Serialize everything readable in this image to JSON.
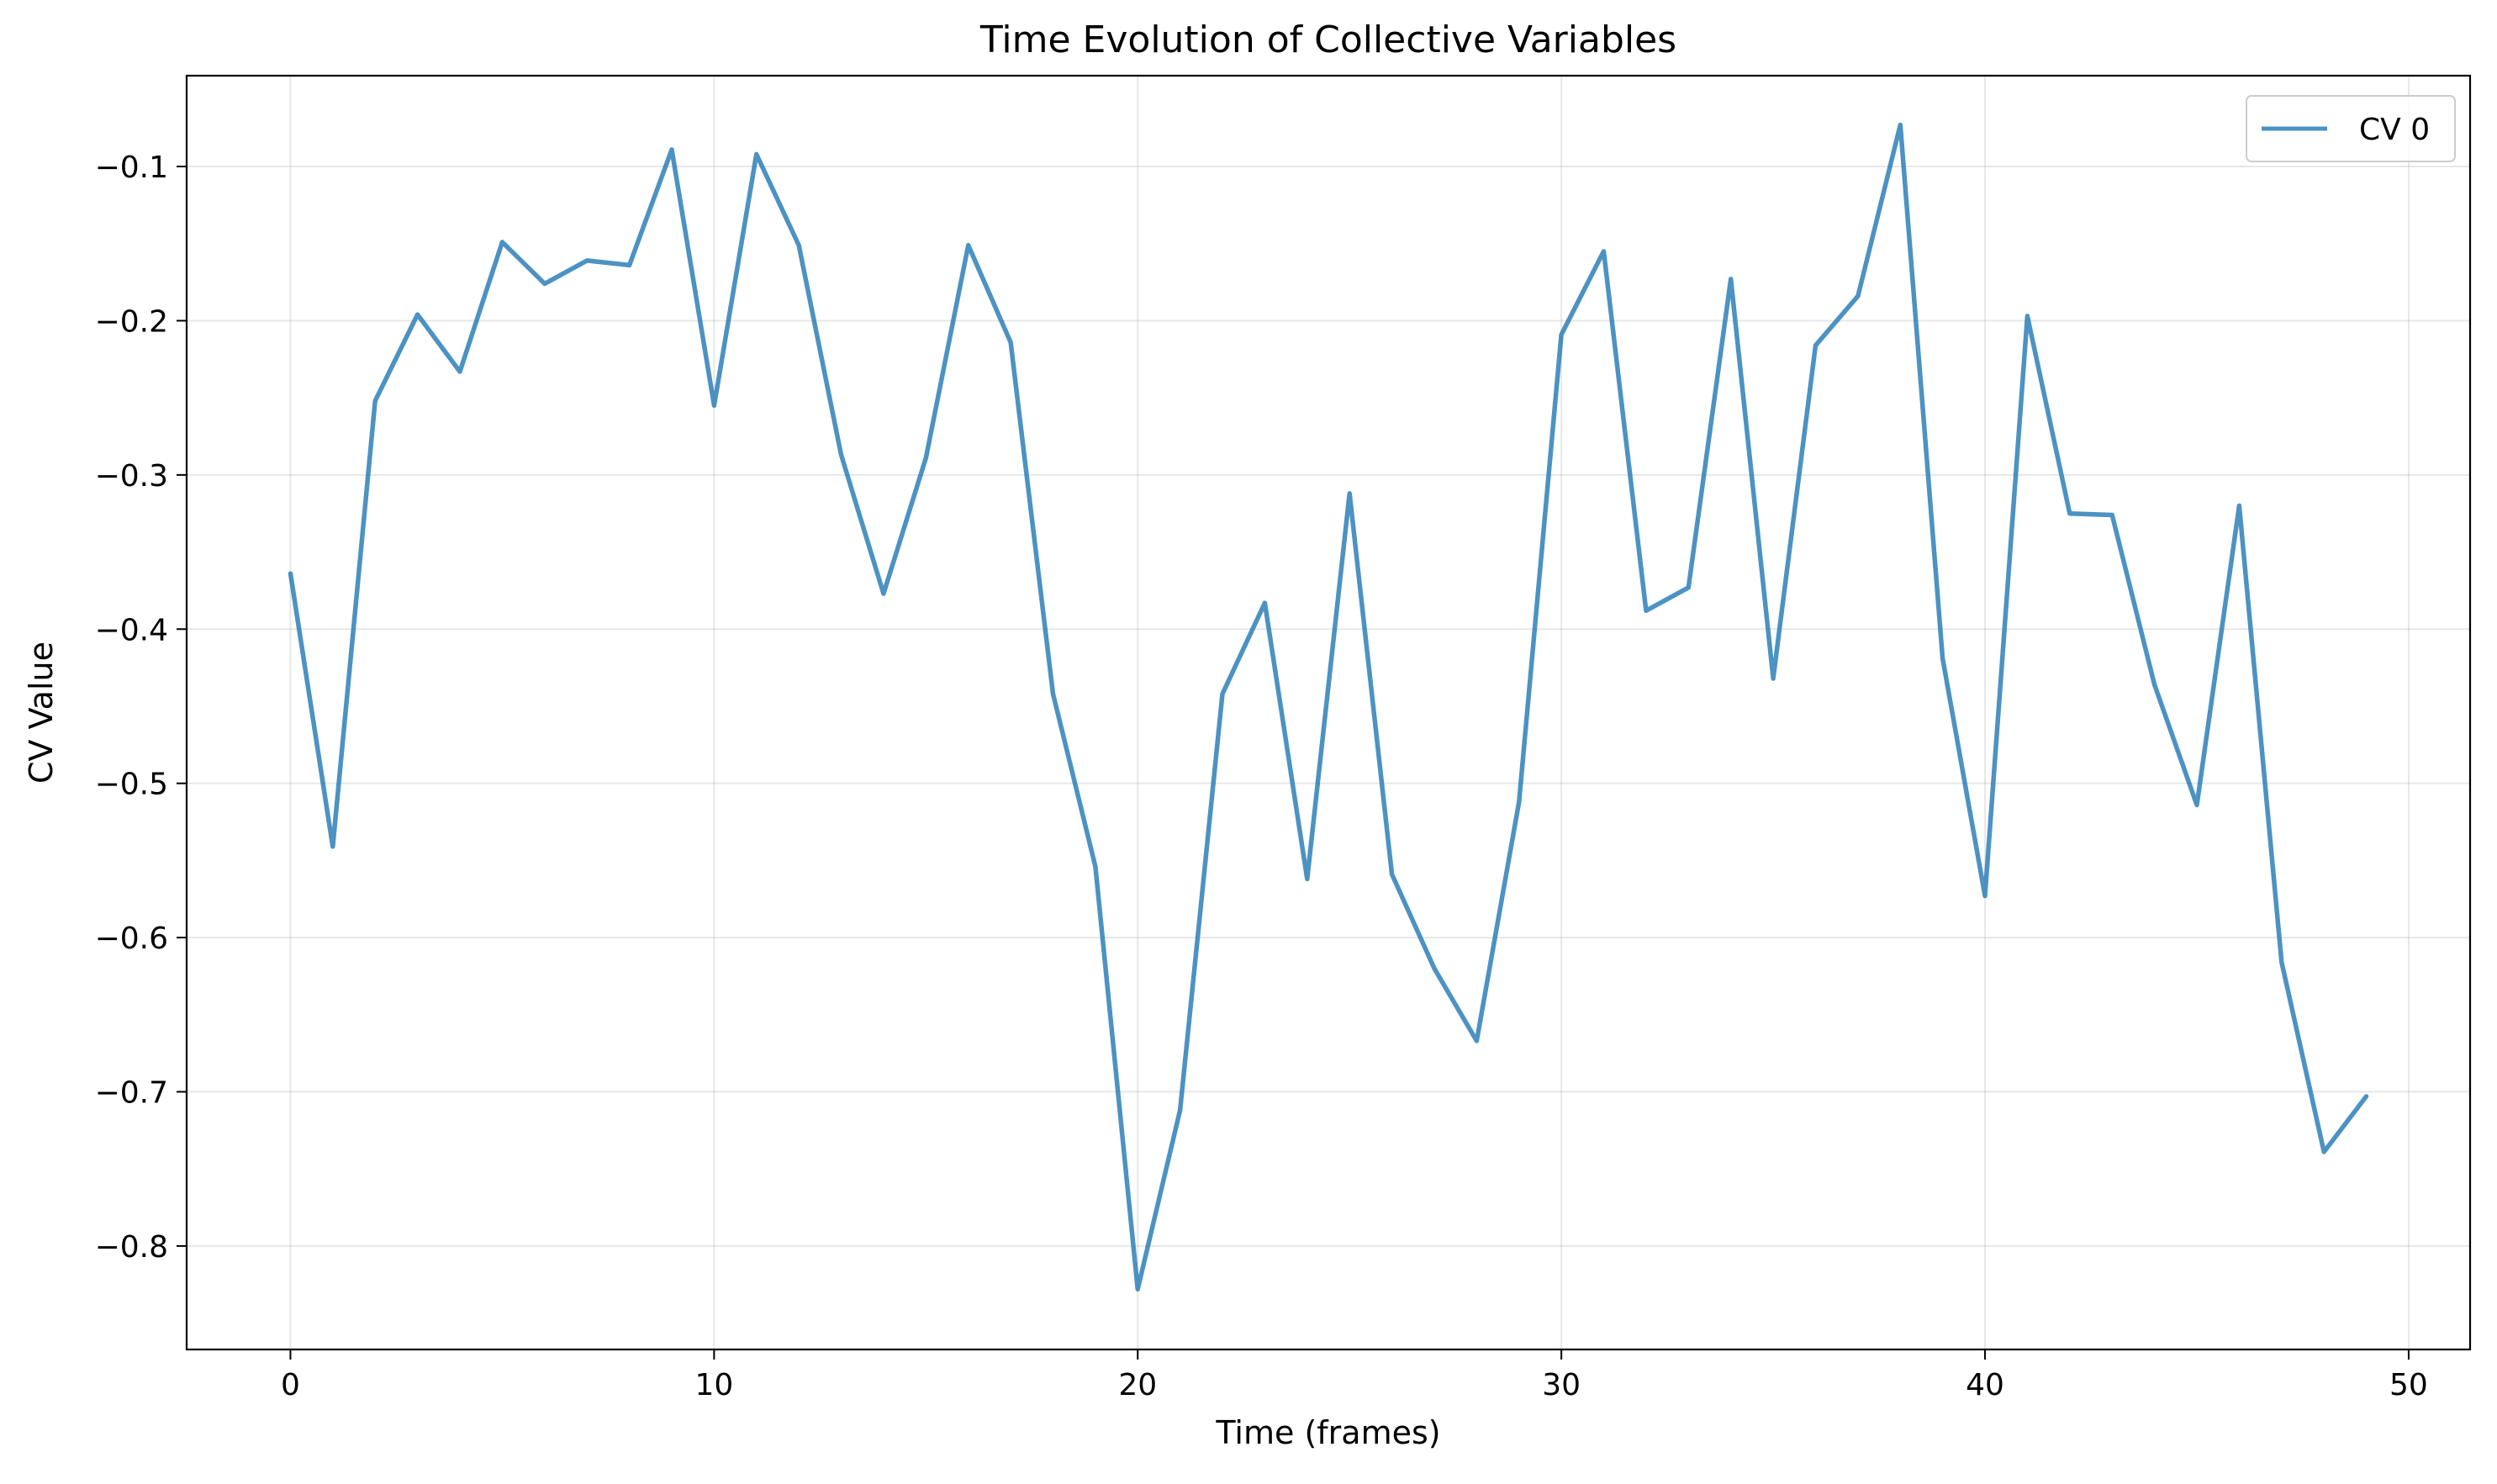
{
  "chart_data": {
    "type": "line",
    "title": "Time Evolution of Collective Variables",
    "xlabel": "Time (frames)",
    "ylabel": "CV Value",
    "xlim": [
      -2.45,
      51.45
    ],
    "ylim": [
      -0.8671,
      -0.0411
    ],
    "xticks": [
      0,
      10,
      20,
      30,
      40,
      50
    ],
    "yticks": [
      -0.8,
      -0.7,
      -0.6,
      -0.5,
      -0.4,
      -0.3,
      -0.2,
      -0.1
    ],
    "xtick_labels": [
      "0",
      "10",
      "20",
      "30",
      "40",
      "50"
    ],
    "ytick_labels": [
      "−0.8",
      "−0.7",
      "−0.6",
      "−0.5",
      "−0.4",
      "−0.3",
      "−0.2",
      "−0.1"
    ],
    "grid": true,
    "legend_position": "top-right",
    "series": [
      {
        "name": "CV 0",
        "color": "#1f77b4",
        "x": [
          0,
          1,
          2,
          3,
          4,
          5,
          6,
          7,
          8,
          9,
          10,
          11,
          12,
          13,
          14,
          15,
          16,
          17,
          18,
          19,
          20,
          21,
          22,
          23,
          24,
          25,
          26,
          27,
          28,
          29,
          30,
          31,
          32,
          33,
          34,
          35,
          36,
          37,
          38,
          39,
          40,
          41,
          42,
          43,
          44,
          45,
          46,
          47,
          48,
          49
        ],
        "values": [
          -0.364,
          -0.541,
          -0.252,
          -0.196,
          -0.233,
          -0.149,
          -0.176,
          -0.161,
          -0.164,
          -0.089,
          -0.255,
          -0.092,
          -0.151,
          -0.287,
          -0.377,
          -0.289,
          -0.151,
          -0.214,
          -0.442,
          -0.554,
          -0.828,
          -0.712,
          -0.442,
          -0.383,
          -0.562,
          -0.312,
          -0.559,
          -0.62,
          -0.667,
          -0.512,
          -0.209,
          -0.155,
          -0.388,
          -0.373,
          -0.173,
          -0.432,
          -0.216,
          -0.184,
          -0.073,
          -0.419,
          -0.573,
          -0.197,
          -0.325,
          -0.326,
          -0.436,
          -0.514,
          -0.32,
          -0.616,
          -0.739,
          -0.703
        ]
      }
    ]
  }
}
